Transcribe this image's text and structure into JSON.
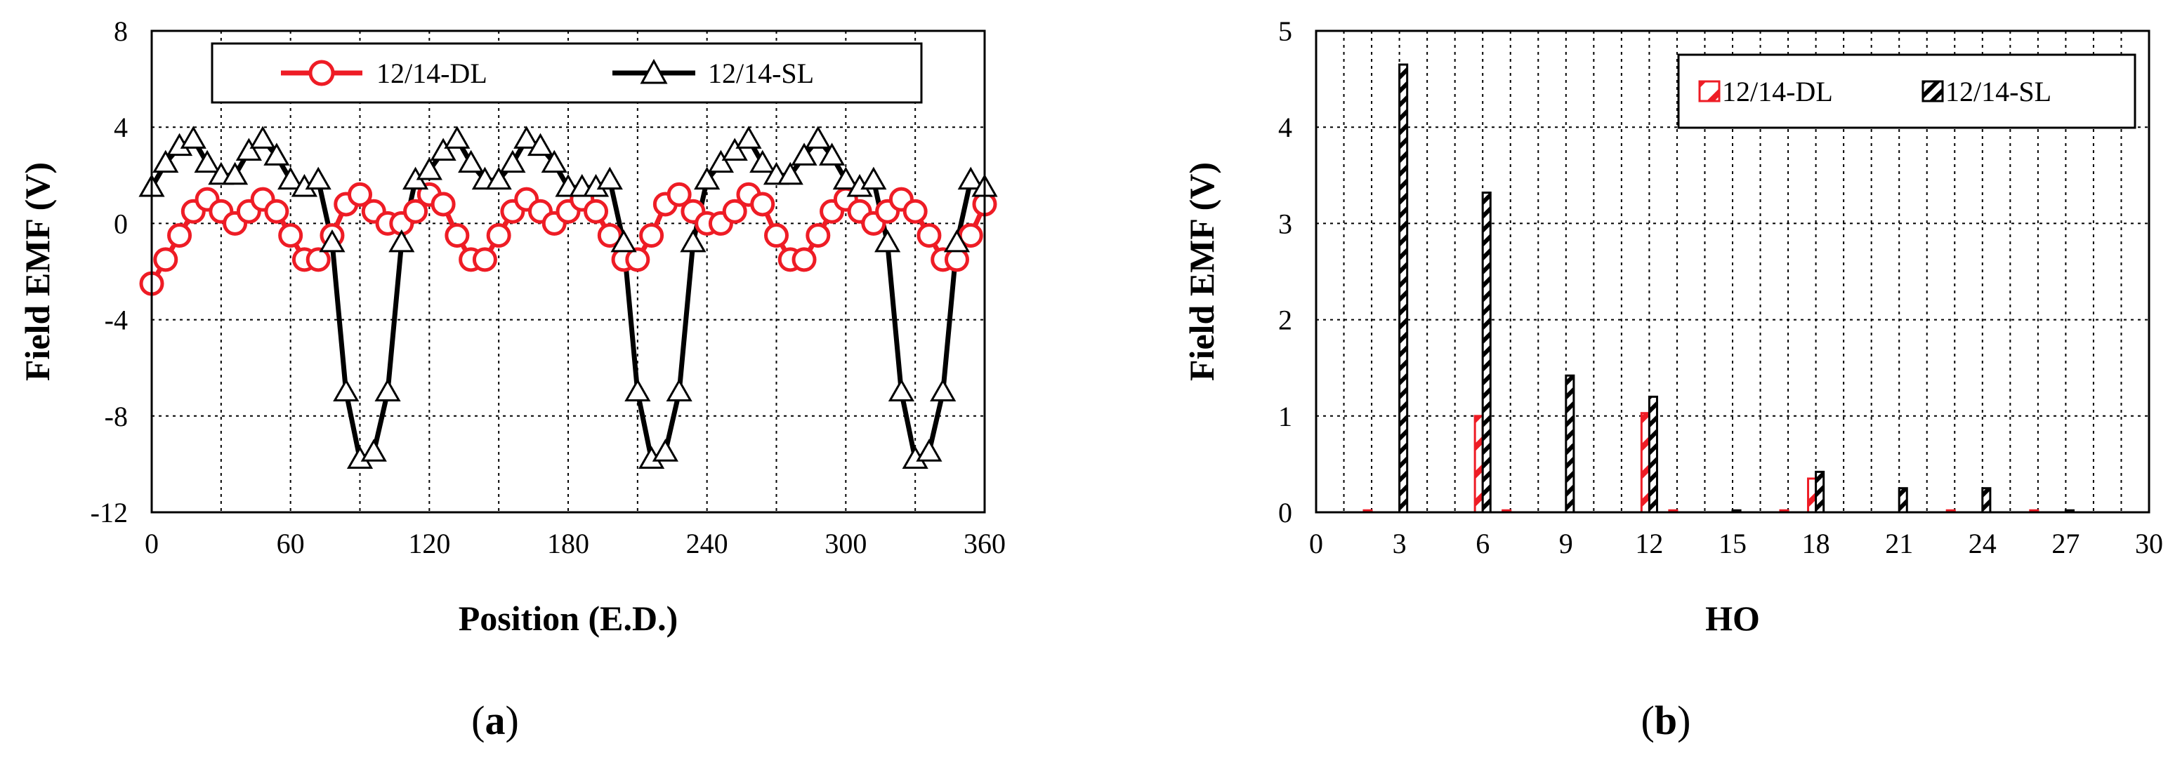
{
  "chart_data": [
    {
      "type": "line",
      "panel_label": "a",
      "title": "",
      "xlabel": "Position (E.D.)",
      "ylabel": "Field EMF (V)",
      "xlim": [
        0,
        360
      ],
      "ylim": [
        -12,
        8
      ],
      "xticks": [
        0,
        60,
        120,
        180,
        240,
        300,
        360
      ],
      "xtick_labels": [
        "0",
        "60",
        "120",
        "180",
        "240",
        "300",
        "360"
      ],
      "yticks": [
        -12,
        -8,
        -4,
        0,
        4,
        8
      ],
      "ytick_labels": [
        "-12",
        "-8",
        "-4",
        "0",
        "4",
        "8"
      ],
      "grid": true,
      "legend_position": "top",
      "series": [
        {
          "name": "12/14-DL",
          "color": "#ee1c25",
          "marker": "circle",
          "x": [
            0,
            6,
            12,
            18,
            24,
            30,
            36,
            42,
            48,
            54,
            60,
            66,
            72,
            78,
            84,
            90,
            96,
            102,
            108,
            114,
            120,
            126,
            132,
            138,
            144,
            150,
            156,
            162,
            168,
            174,
            180,
            186,
            192,
            198,
            204,
            210,
            216,
            222,
            228,
            234,
            240,
            246,
            252,
            258,
            264,
            270,
            276,
            282,
            288,
            294,
            300,
            306,
            312,
            318,
            324,
            330,
            336,
            342,
            348,
            354,
            360
          ],
          "values": [
            -2.5,
            -1.5,
            -0.5,
            0.5,
            1.0,
            0.5,
            0.0,
            0.5,
            1.0,
            0.5,
            -0.5,
            -1.5,
            -1.5,
            -0.5,
            0.8,
            1.2,
            0.5,
            0.0,
            0.0,
            0.5,
            1.2,
            0.8,
            -0.5,
            -1.5,
            -1.5,
            -0.5,
            0.5,
            1.0,
            0.5,
            0.0,
            0.5,
            1.0,
            0.5,
            -0.5,
            -1.5,
            -1.5,
            -0.5,
            0.8,
            1.2,
            0.5,
            0.0,
            0.0,
            0.5,
            1.2,
            0.8,
            -0.5,
            -1.5,
            -1.5,
            -0.5,
            0.5,
            1.0,
            0.5,
            0.0,
            0.5,
            1.0,
            0.5,
            -0.5,
            -1.5,
            -1.5,
            -0.5,
            0.8
          ]
        },
        {
          "name": "12/14-SL",
          "color": "#000000",
          "marker": "triangle",
          "x": [
            0,
            6,
            12,
            18,
            24,
            30,
            36,
            42,
            48,
            54,
            60,
            66,
            72,
            78,
            84,
            90,
            96,
            102,
            108,
            114,
            120,
            126,
            132,
            138,
            144,
            150,
            156,
            162,
            168,
            174,
            180,
            186,
            192,
            198,
            204,
            210,
            216,
            222,
            228,
            234,
            240,
            246,
            252,
            258,
            264,
            270,
            276,
            282,
            288,
            294,
            300,
            306,
            312,
            318,
            324,
            330,
            336,
            342,
            348,
            354,
            360
          ],
          "values": [
            1.5,
            2.5,
            3.2,
            3.5,
            2.5,
            2.0,
            2.0,
            3.0,
            3.5,
            2.8,
            1.8,
            1.5,
            1.8,
            -0.8,
            -7.0,
            -9.8,
            -9.5,
            -7.0,
            -0.8,
            1.8,
            2.2,
            3.0,
            3.5,
            2.5,
            1.8,
            1.8,
            2.5,
            3.5,
            3.2,
            2.5,
            1.5,
            1.5,
            1.5,
            1.8,
            -0.8,
            -7.0,
            -9.8,
            -9.5,
            -7.0,
            -0.8,
            1.8,
            2.5,
            3.0,
            3.5,
            2.5,
            2.0,
            2.0,
            2.8,
            3.5,
            2.8,
            1.8,
            1.5,
            1.8,
            -0.8,
            -7.0,
            -9.8,
            -9.5,
            -7.0,
            -0.8,
            1.8,
            1.5
          ]
        }
      ]
    },
    {
      "type": "bar",
      "panel_label": "b",
      "title": "",
      "xlabel": "HO",
      "ylabel": "Field EMF (V)",
      "xlim": [
        0,
        30
      ],
      "ylim": [
        0,
        5
      ],
      "xticks": [
        0,
        3,
        6,
        9,
        12,
        15,
        18,
        21,
        24,
        27,
        30
      ],
      "xtick_labels": [
        "0",
        "3",
        "6",
        "9",
        "12",
        "15",
        "18",
        "21",
        "24",
        "27",
        "30"
      ],
      "yticks": [
        0,
        1,
        2,
        3,
        4,
        5
      ],
      "ytick_labels": [
        "0",
        "1",
        "2",
        "3",
        "4",
        "5"
      ],
      "grid": true,
      "legend_position": "top-right",
      "categories": [
        1,
        2,
        3,
        4,
        5,
        6,
        7,
        8,
        9,
        10,
        11,
        12,
        13,
        14,
        15,
        16,
        17,
        18,
        19,
        20,
        21,
        22,
        23,
        24,
        25,
        26,
        27,
        28,
        29,
        30
      ],
      "series": [
        {
          "name": "12/14-DL",
          "color": "#ee1c25",
          "pattern": "red-hatch",
          "values": [
            0.0,
            0.02,
            0.0,
            0.0,
            0.0,
            1.0,
            0.02,
            0.0,
            0.0,
            0.0,
            0.0,
            1.03,
            0.02,
            0.0,
            0.0,
            0.0,
            0.02,
            0.35,
            0.0,
            0.0,
            0.0,
            0.0,
            0.02,
            0.0,
            0.0,
            0.02,
            0.0,
            0.0,
            0.0,
            0.0
          ]
        },
        {
          "name": "12/14-SL",
          "color": "#000000",
          "pattern": "black-hatch",
          "values": [
            0.0,
            0.0,
            4.65,
            0.0,
            0.0,
            3.32,
            0.0,
            0.0,
            1.42,
            0.0,
            0.0,
            1.2,
            0.0,
            0.0,
            0.02,
            0.0,
            0.0,
            0.42,
            0.0,
            0.0,
            0.25,
            0.0,
            0.0,
            0.25,
            0.0,
            0.0,
            0.02,
            0.0,
            0.0,
            0.0
          ]
        }
      ]
    }
  ]
}
